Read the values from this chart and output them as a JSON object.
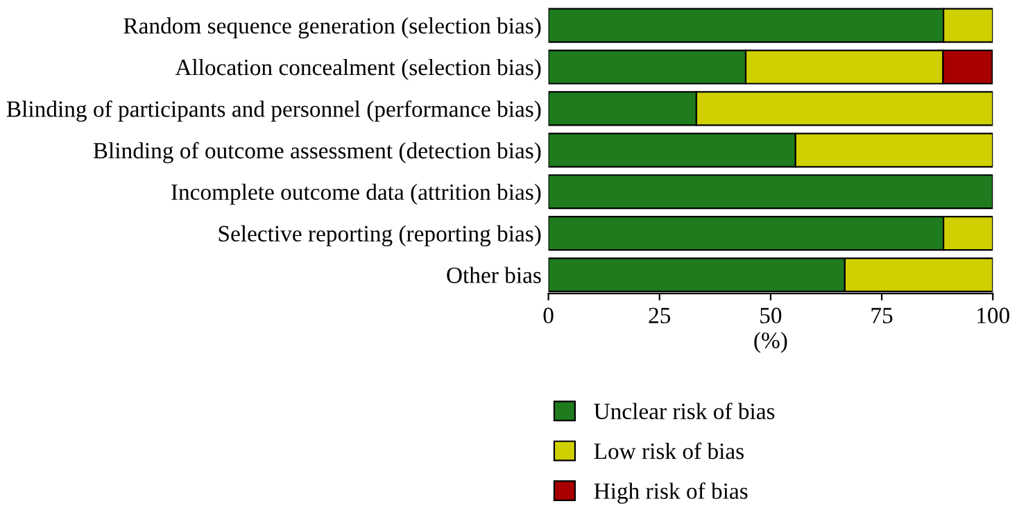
{
  "chart_data": {
    "type": "bar",
    "orientation": "horizontal",
    "stacked": true,
    "xlabel": "(%)",
    "categories": [
      "Random sequence generation (selection bias)",
      "Allocation concealment (selection bias)",
      "Blinding of participants and personnel (performance bias)",
      "Blinding of outcome assessment (detection bias)",
      "Incomplete outcome data (attrition bias)",
      "Selective reporting (reporting bias)",
      "Other bias"
    ],
    "series": [
      {
        "name": "Unclear risk of bias",
        "color": "#1e7b1e",
        "values": [
          88.9,
          44.4,
          33.3,
          55.6,
          100,
          88.9,
          66.7
        ]
      },
      {
        "name": "Low risk of bias",
        "color": "#d0d000",
        "values": [
          11.1,
          44.4,
          66.7,
          44.4,
          null,
          11.1,
          33.3
        ]
      },
      {
        "name": "High risk of bias",
        "color": "#a80000",
        "values": [
          null,
          11.1,
          null,
          null,
          null,
          null,
          null
        ]
      }
    ],
    "xlim": [
      0,
      100
    ],
    "xticks": [
      0,
      25,
      50,
      75,
      100
    ],
    "grid": false,
    "legend": "bottom left"
  }
}
